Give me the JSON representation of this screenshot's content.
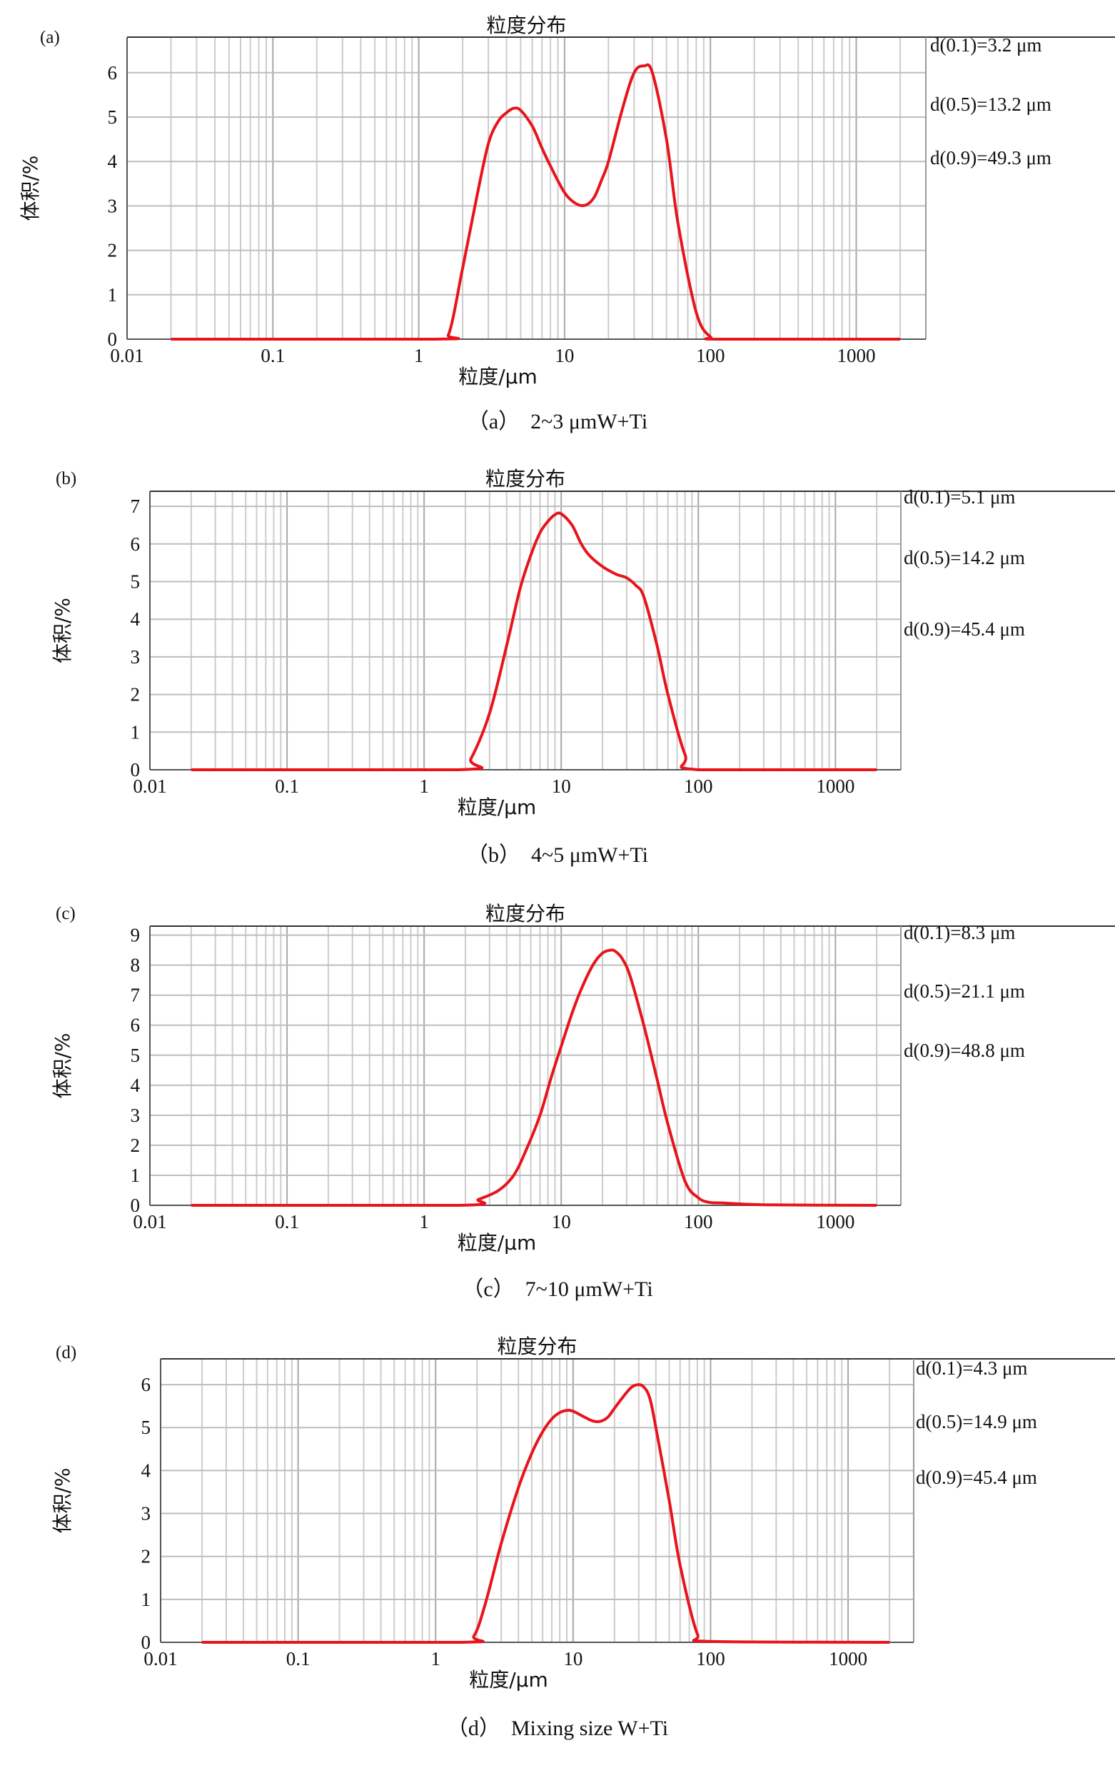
{
  "chart_data": [
    {
      "type": "line",
      "panel_label": "(a)",
      "title": "粒度分布",
      "xlabel": "粒度/μm",
      "ylabel": "体积/%",
      "x_scale": "log",
      "xlim": [
        0.01,
        3000
      ],
      "ylim": [
        0,
        6.8
      ],
      "x_ticks": [
        "0.01",
        "0.1",
        "1",
        "10",
        "100",
        "1000"
      ],
      "y_ticks": [
        "0",
        "1",
        "2",
        "3",
        "4",
        "5",
        "6"
      ],
      "grid": true,
      "color": "#e8141b",
      "annotations": [
        "d(0.1)=3.2 μm",
        "d(0.5)=13.2 μm",
        "d(0.9)=49.3 μm"
      ],
      "caption": "（a）  2~3 μmW+Ti",
      "series": [
        {
          "x": [
            0.02,
            1.3,
            1.6,
            2.0,
            2.5,
            3.0,
            3.5,
            4.0,
            4.5,
            5.0,
            6.0,
            7.0,
            8.0,
            10.0,
            12.0,
            14.0,
            16.0,
            18.0,
            20.0,
            25.0,
            30.0,
            35.0,
            40.0,
            50.0,
            60.0,
            80.0,
            100.0,
            120.0,
            2000.0
          ],
          "y": [
            0,
            0,
            0.1,
            1.6,
            3.2,
            4.4,
            4.9,
            5.1,
            5.2,
            5.15,
            4.8,
            4.3,
            3.9,
            3.3,
            3.05,
            3.02,
            3.2,
            3.6,
            4.0,
            5.2,
            6.0,
            6.15,
            6.0,
            4.5,
            2.6,
            0.6,
            0.05,
            0,
            0
          ]
        }
      ]
    },
    {
      "type": "line",
      "panel_label": "(b)",
      "title": "粒度分布",
      "xlabel": "粒度/μm",
      "ylabel": "体积/%",
      "x_scale": "log",
      "xlim": [
        0.01,
        3000
      ],
      "ylim": [
        0,
        7.4
      ],
      "x_ticks": [
        "0.01",
        "0.1",
        "1",
        "10",
        "100",
        "1000"
      ],
      "y_ticks": [
        "0",
        "1",
        "2",
        "3",
        "4",
        "5",
        "6",
        "7"
      ],
      "grid": true,
      "color": "#e8141b",
      "annotations": [
        "d(0.1)=5.1 μm",
        "d(0.5)=14.2 μm",
        "d(0.9)=45.4 μm"
      ],
      "caption": "（b）  4~5 μmW+Ti",
      "series": [
        {
          "x": [
            0.02,
            1.8,
            2.2,
            3.0,
            4.0,
            5.0,
            6.0,
            7.0,
            8.0,
            9.0,
            10.0,
            12.0,
            14.0,
            16.0,
            20.0,
            25.0,
            30.0,
            35.0,
            40.0,
            50.0,
            60.0,
            80.0,
            100.0,
            2000.0
          ],
          "y": [
            0,
            0,
            0.3,
            1.5,
            3.3,
            4.8,
            5.7,
            6.3,
            6.6,
            6.78,
            6.8,
            6.5,
            6.0,
            5.7,
            5.4,
            5.2,
            5.1,
            4.9,
            4.6,
            3.3,
            2.0,
            0.4,
            0,
            0
          ]
        }
      ]
    },
    {
      "type": "line",
      "panel_label": "(c)",
      "title": "粒度分布",
      "xlabel": "粒度/μm",
      "ylabel": "体积/%",
      "x_scale": "log",
      "xlim": [
        0.01,
        3000
      ],
      "ylim": [
        0,
        9.3
      ],
      "x_ticks": [
        "0.01",
        "0.1",
        "1",
        "10",
        "100",
        "1000"
      ],
      "y_ticks": [
        "0",
        "1",
        "2",
        "3",
        "4",
        "5",
        "6",
        "7",
        "8",
        "9"
      ],
      "grid": true,
      "color": "#e8141b",
      "annotations": [
        "d(0.1)=8.3 μm",
        "d(0.5)=21.1 μm",
        "d(0.9)=48.8 μm"
      ],
      "caption": "（c）  7~10 μmW+Ti",
      "series": [
        {
          "x": [
            0.02,
            1.8,
            2.5,
            3.5,
            4.5,
            5.5,
            7.0,
            8.5,
            10.0,
            12.0,
            14.0,
            17.0,
            20.0,
            23.0,
            25.0,
            28.0,
            32.0,
            40.0,
            50.0,
            60.0,
            80.0,
            100.0,
            120.0,
            150.0,
            300.0,
            2000.0
          ],
          "y": [
            0,
            0,
            0.2,
            0.5,
            1.0,
            1.8,
            3.0,
            4.3,
            5.3,
            6.4,
            7.2,
            8.0,
            8.4,
            8.5,
            8.45,
            8.2,
            7.6,
            6.0,
            4.2,
            2.7,
            0.8,
            0.25,
            0.1,
            0.08,
            0.02,
            0
          ]
        }
      ]
    },
    {
      "type": "line",
      "panel_label": "(d)",
      "title": "粒度分布",
      "xlabel": "粒度/μm",
      "ylabel": "体积/%",
      "x_scale": "log",
      "xlim": [
        0.01,
        3000
      ],
      "ylim": [
        0,
        6.6
      ],
      "x_ticks": [
        "0.01",
        "0.1",
        "1",
        "10",
        "100",
        "1000"
      ],
      "y_ticks": [
        "0",
        "1",
        "2",
        "3",
        "4",
        "5",
        "6"
      ],
      "grid": true,
      "color": "#e8141b",
      "annotations": [
        "d(0.1)=4.3 μm",
        "d(0.5)=14.9 μm",
        "d(0.9)=45.4 μm"
      ],
      "caption": "（d）  Mixing size W+Ti",
      "series": [
        {
          "x": [
            0.02,
            1.5,
            1.9,
            2.3,
            3.0,
            4.0,
            5.0,
            6.0,
            7.0,
            8.0,
            9.0,
            10.0,
            12.0,
            14.0,
            16.0,
            18.0,
            20.0,
            25.0,
            28.0,
            32.0,
            36.0,
            40.0,
            50.0,
            60.0,
            80.0,
            100.0,
            2000.0
          ],
          "y": [
            0,
            0,
            0.15,
            0.9,
            2.3,
            3.6,
            4.4,
            4.9,
            5.2,
            5.35,
            5.4,
            5.38,
            5.25,
            5.15,
            5.15,
            5.25,
            5.45,
            5.85,
            5.98,
            5.97,
            5.7,
            5.0,
            3.3,
            1.8,
            0.2,
            0.02,
            0
          ]
        }
      ]
    }
  ]
}
